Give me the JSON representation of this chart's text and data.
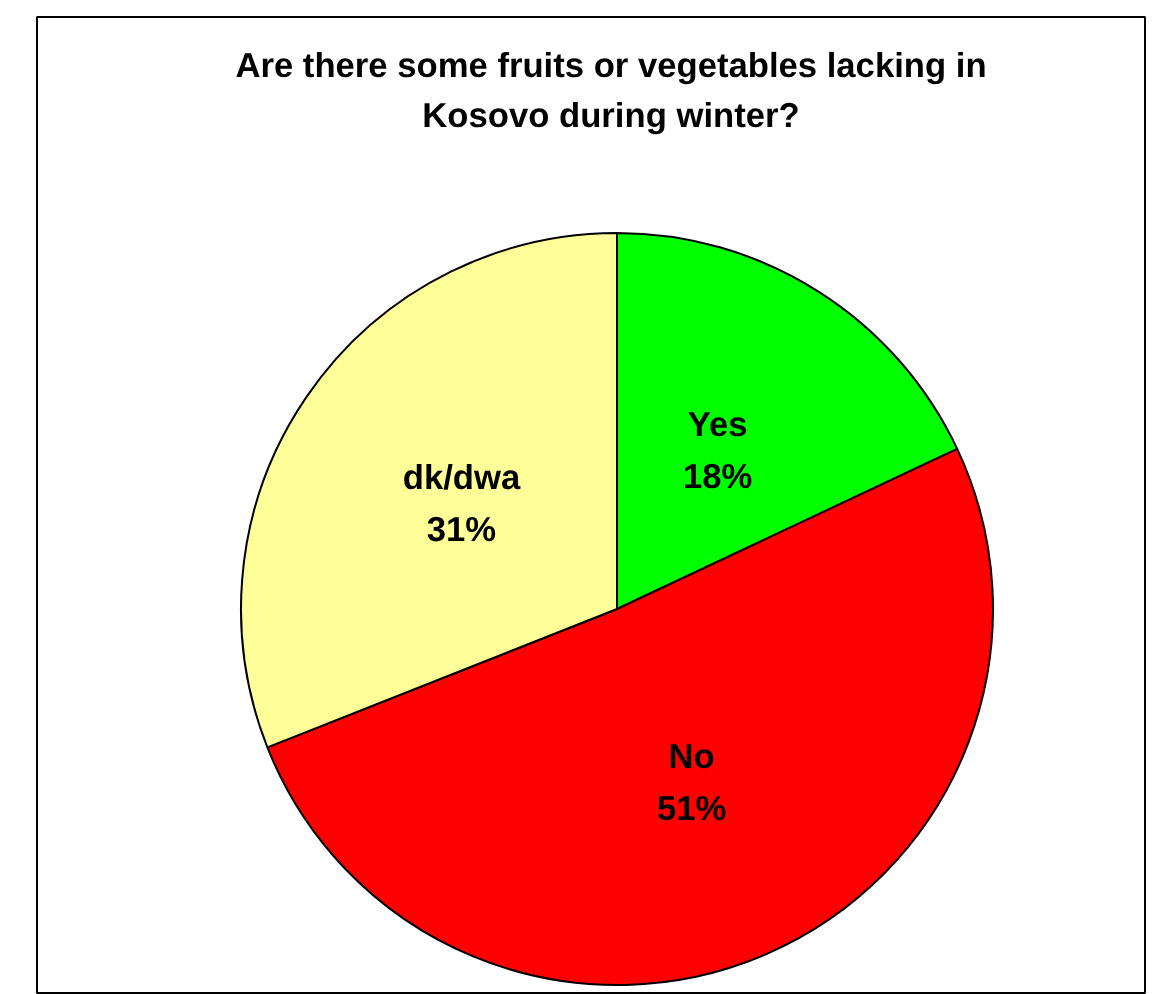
{
  "chart_data": {
    "type": "pie",
    "title": "Are there some fruits or vegetables lacking in Kosovo during winter?",
    "categories": [
      "Yes",
      "No",
      "dk/dwa"
    ],
    "values": [
      18,
      51,
      31
    ],
    "colors": [
      "#00ff00",
      "#ff0000",
      "#ffff99"
    ],
    "value_labels": [
      "18%",
      "51%",
      "31%"
    ]
  }
}
